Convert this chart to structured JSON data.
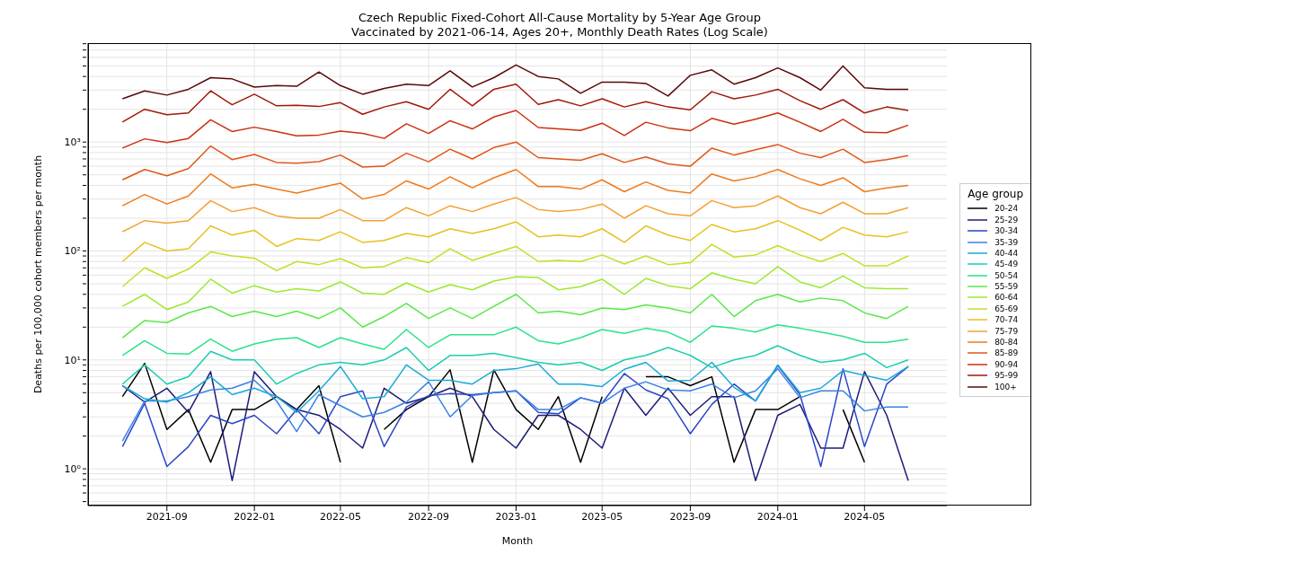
{
  "chart_data": {
    "type": "line",
    "title": "Czech Republic Fixed-Cohort All-Cause Mortality by 5-Year Age Group",
    "subtitle": "Vaccinated by 2021-06-14, Ages 20+, Monthly Death Rates (Log Scale)",
    "xlabel": "Month",
    "ylabel": "Deaths per 100,000 cohort members per month",
    "legend_title": "Age group",
    "legend": "right",
    "grid": true,
    "log": "y",
    "line_style": "solid",
    "marker": "none",
    "x": [
      "2021-07",
      "2021-08",
      "2021-09",
      "2021-10",
      "2021-11",
      "2021-12",
      "2022-01",
      "2022-02",
      "2022-03",
      "2022-04",
      "2022-05",
      "2022-06",
      "2022-07",
      "2022-08",
      "2022-09",
      "2022-10",
      "2022-11",
      "2022-12",
      "2023-01",
      "2023-02",
      "2023-03",
      "2023-04",
      "2023-05",
      "2023-06",
      "2023-07",
      "2023-08",
      "2023-09",
      "2023-10",
      "2023-11",
      "2023-12",
      "2024-01",
      "2024-02",
      "2024-03",
      "2024-04",
      "2024-05",
      "2024-06",
      "2024-07"
    ],
    "xlim": [
      "2021-05-14",
      "2024-08-24"
    ],
    "xticks": [
      {
        "value": "2021-09-01",
        "label": "2021-09"
      },
      {
        "value": "2022-01-01",
        "label": "2022-01"
      },
      {
        "value": "2022-05-01",
        "label": "2022-05"
      },
      {
        "value": "2022-09-01",
        "label": "2022-09"
      },
      {
        "value": "2023-01-01",
        "label": "2023-01"
      },
      {
        "value": "2023-05-01",
        "label": "2023-05"
      },
      {
        "value": "2023-09-01",
        "label": "2023-09"
      },
      {
        "value": "2024-01-01",
        "label": "2024-01"
      },
      {
        "value": "2024-05-01",
        "label": "2024-05"
      }
    ],
    "ylim": [
      0.46,
      8100
    ],
    "yticks": [
      {
        "value": 0.5,
        "label": null
      },
      {
        "value": 0.6,
        "label": null
      },
      {
        "value": 0.7,
        "label": null
      },
      {
        "value": 0.8,
        "label": null
      },
      {
        "value": 0.9,
        "label": null
      },
      {
        "value": 1,
        "label": "10⁰"
      },
      {
        "value": 2,
        "label": null
      },
      {
        "value": 3,
        "label": null
      },
      {
        "value": 4,
        "label": null
      },
      {
        "value": 5,
        "label": null
      },
      {
        "value": 6,
        "label": null
      },
      {
        "value": 7,
        "label": null
      },
      {
        "value": 8,
        "label": null
      },
      {
        "value": 9,
        "label": null
      },
      {
        "value": 10,
        "label": "10¹"
      },
      {
        "value": 20,
        "label": null
      },
      {
        "value": 30,
        "label": null
      },
      {
        "value": 40,
        "label": null
      },
      {
        "value": 50,
        "label": null
      },
      {
        "value": 60,
        "label": null
      },
      {
        "value": 70,
        "label": null
      },
      {
        "value": 80,
        "label": null
      },
      {
        "value": 90,
        "label": null
      },
      {
        "value": 100,
        "label": "10²"
      },
      {
        "value": 200,
        "label": null
      },
      {
        "value": 300,
        "label": null
      },
      {
        "value": 400,
        "label": null
      },
      {
        "value": 500,
        "label": null
      },
      {
        "value": 600,
        "label": null
      },
      {
        "value": 700,
        "label": null
      },
      {
        "value": 800,
        "label": null
      },
      {
        "value": 900,
        "label": null
      },
      {
        "value": 1000,
        "label": "10³"
      },
      {
        "value": 2000,
        "label": null
      },
      {
        "value": 3000,
        "label": null
      },
      {
        "value": 4000,
        "label": null
      },
      {
        "value": 5000,
        "label": null
      },
      {
        "value": 6000,
        "label": null
      },
      {
        "value": 7000,
        "label": null
      },
      {
        "value": 8000,
        "label": null
      }
    ],
    "series": [
      {
        "name": "20-24",
        "color": "#000000",
        "values": [
          4.6,
          9.3,
          2.3,
          3.5,
          1.15,
          3.5,
          3.5,
          4.6,
          3.5,
          5.8,
          1.15,
          null,
          2.3,
          3.5,
          4.6,
          8.1,
          1.15,
          8.1,
          3.5,
          2.3,
          4.6,
          1.15,
          4.6,
          null,
          7.0,
          7.0,
          5.8,
          7.0,
          1.15,
          3.5,
          3.5,
          4.6,
          null,
          3.5,
          1.15,
          null,
          null
        ]
      },
      {
        "name": "25-29",
        "color": "#1c1c78",
        "values": [
          5.8,
          4.1,
          5.5,
          3.3,
          7.8,
          0.78,
          7.8,
          4.6,
          3.5,
          3.1,
          2.3,
          1.55,
          5.5,
          4.0,
          4.6,
          5.5,
          4.6,
          2.3,
          1.55,
          3.1,
          3.1,
          2.3,
          1.55,
          5.5,
          3.1,
          5.5,
          3.1,
          4.6,
          4.6,
          0.78,
          3.1,
          3.9,
          1.55,
          1.55,
          7.8,
          3.1,
          0.78
        ]
      },
      {
        "name": "30-34",
        "color": "#2a46c8",
        "values": [
          1.6,
          4.0,
          1.05,
          1.6,
          3.1,
          2.6,
          3.1,
          2.1,
          3.5,
          2.1,
          4.6,
          5.2,
          1.6,
          3.7,
          4.7,
          4.9,
          4.8,
          5.0,
          5.2,
          3.3,
          3.2,
          4.5,
          4.0,
          7.5,
          5.3,
          4.4,
          2.1,
          3.9,
          6.0,
          4.2,
          8.9,
          4.8,
          1.05,
          8.3,
          1.6,
          6.0,
          8.7
        ]
      },
      {
        "name": "35-39",
        "color": "#3a82e6",
        "values": [
          1.8,
          4.2,
          4.2,
          4.6,
          5.3,
          5.5,
          6.5,
          4.2,
          2.2,
          4.8,
          3.8,
          3.0,
          3.3,
          4.1,
          6.3,
          3.0,
          4.7,
          5.0,
          5.2,
          3.5,
          3.5,
          4.5,
          4.0,
          5.5,
          6.3,
          5.3,
          5.2,
          6.0,
          4.5,
          5.2,
          8.3,
          4.5,
          5.2,
          5.2,
          3.4,
          3.7,
          3.7
        ]
      },
      {
        "name": "40-44",
        "color": "#1aaad8",
        "values": [
          5.8,
          4.4,
          4.1,
          5.0,
          7.0,
          4.8,
          5.5,
          4.6,
          3.3,
          5.2,
          8.7,
          4.4,
          4.6,
          9.0,
          6.5,
          6.5,
          6.0,
          8.0,
          8.3,
          9.2,
          6.0,
          6.0,
          5.7,
          8.2,
          9.5,
          6.4,
          6.5,
          9.5,
          5.6,
          4.2,
          9.0,
          5.0,
          5.5,
          8.0,
          7.2,
          6.5,
          8.7
        ]
      },
      {
        "name": "45-49",
        "color": "#1ccdb0",
        "values": [
          6,
          9,
          6,
          7,
          12,
          10,
          10,
          6,
          7.5,
          9,
          9.5,
          9,
          10,
          13,
          8,
          11,
          11,
          11.5,
          10.5,
          9.5,
          9,
          9.5,
          8,
          10,
          11,
          13,
          11,
          8.5,
          10,
          11,
          13.5,
          11,
          9.5,
          10,
          11.5,
          8.5,
          10
        ]
      },
      {
        "name": "50-54",
        "color": "#28e38a",
        "values": [
          11,
          15,
          11.5,
          11.3,
          15.5,
          12,
          14,
          15.5,
          16,
          13,
          16,
          14,
          12.5,
          19,
          13,
          17,
          17,
          17,
          20,
          15,
          14,
          16,
          19,
          17.5,
          19.5,
          18,
          14.5,
          20.5,
          19.5,
          18,
          21,
          19.5,
          18,
          16.5,
          14.5,
          14.5,
          15.5
        ]
      },
      {
        "name": "55-59",
        "color": "#5ae84a",
        "values": [
          16,
          23,
          22,
          27,
          31,
          25,
          28,
          25,
          28,
          24,
          30,
          20,
          25,
          33,
          24,
          30,
          24,
          31,
          40,
          27,
          28,
          26,
          30,
          29,
          32,
          30,
          27,
          40,
          25,
          35,
          40,
          34,
          37,
          35,
          27,
          24,
          31
        ]
      },
      {
        "name": "60-64",
        "color": "#9ee830",
        "values": [
          31,
          40,
          29,
          34,
          55,
          41,
          48,
          42,
          45,
          43,
          52,
          41,
          40,
          51,
          42,
          49,
          44,
          53,
          58,
          57,
          44,
          47,
          55,
          40,
          56,
          48,
          45,
          63,
          55,
          50,
          72,
          52,
          46,
          59,
          46,
          45,
          45
        ]
      },
      {
        "name": "65-69",
        "color": "#c9dc24",
        "values": [
          47,
          70,
          56,
          68,
          98,
          90,
          86,
          66,
          80,
          75,
          85,
          70,
          72,
          87,
          78,
          105,
          82,
          95,
          110,
          80,
          82,
          80,
          92,
          76,
          90,
          75,
          78,
          115,
          88,
          92,
          112,
          92,
          80,
          95,
          73,
          73,
          90
        ]
      },
      {
        "name": "70-74",
        "color": "#e8c020",
        "values": [
          80,
          120,
          100,
          105,
          170,
          140,
          155,
          110,
          130,
          125,
          150,
          120,
          125,
          145,
          135,
          160,
          145,
          160,
          185,
          135,
          140,
          135,
          160,
          120,
          170,
          140,
          125,
          175,
          150,
          160,
          190,
          155,
          125,
          165,
          140,
          135,
          150
        ]
      },
      {
        "name": "75-79",
        "color": "#f5a030",
        "values": [
          150,
          190,
          180,
          190,
          290,
          230,
          250,
          210,
          200,
          200,
          240,
          190,
          190,
          250,
          210,
          260,
          230,
          270,
          310,
          240,
          230,
          240,
          270,
          200,
          260,
          220,
          210,
          290,
          250,
          260,
          320,
          250,
          220,
          280,
          220,
          220,
          250
        ]
      },
      {
        "name": "80-84",
        "color": "#ee7a1c",
        "values": [
          260,
          330,
          270,
          320,
          510,
          380,
          410,
          370,
          340,
          380,
          420,
          300,
          330,
          440,
          370,
          480,
          380,
          470,
          560,
          390,
          390,
          370,
          450,
          350,
          430,
          360,
          340,
          510,
          440,
          480,
          560,
          460,
          400,
          470,
          350,
          380,
          400
        ]
      },
      {
        "name": "85-89",
        "color": "#e0561a",
        "values": [
          450,
          560,
          490,
          570,
          920,
          690,
          770,
          650,
          640,
          660,
          760,
          590,
          600,
          790,
          660,
          860,
          700,
          890,
          1000,
          720,
          700,
          680,
          780,
          650,
          730,
          630,
          600,
          880,
          760,
          850,
          950,
          790,
          720,
          860,
          650,
          690,
          750
        ]
      },
      {
        "name": "90-94",
        "color": "#cc3010",
        "values": [
          880,
          1070,
          990,
          1080,
          1600,
          1250,
          1370,
          1250,
          1140,
          1160,
          1260,
          1200,
          1080,
          1470,
          1200,
          1570,
          1320,
          1700,
          1950,
          1360,
          1320,
          1280,
          1490,
          1150,
          1520,
          1350,
          1270,
          1650,
          1460,
          1620,
          1850,
          1520,
          1250,
          1620,
          1230,
          1220,
          1430
        ]
      },
      {
        "name": "95-99",
        "color": "#a01808",
        "values": [
          1530,
          2000,
          1780,
          1850,
          2950,
          2200,
          2750,
          2150,
          2180,
          2120,
          2300,
          1800,
          2100,
          2350,
          2000,
          3050,
          2150,
          3050,
          3400,
          2220,
          2450,
          2150,
          2500,
          2100,
          2350,
          2100,
          1980,
          2900,
          2500,
          2700,
          3050,
          2400,
          2000,
          2450,
          1850,
          2100,
          1950
        ]
      },
      {
        "name": "100+",
        "color": "#5a0808",
        "values": [
          2500,
          2950,
          2700,
          3050,
          3900,
          3800,
          3200,
          3300,
          3250,
          4400,
          3300,
          2750,
          3100,
          3400,
          3300,
          4500,
          3200,
          3900,
          5100,
          4000,
          3800,
          2800,
          3550,
          3550,
          3450,
          2650,
          4100,
          4600,
          3400,
          3900,
          4800,
          3900,
          3000,
          5000,
          3150,
          3050,
          3050
        ]
      }
    ]
  }
}
